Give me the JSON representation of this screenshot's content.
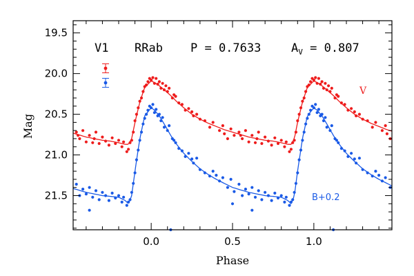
{
  "chart_data": {
    "type": "scatter",
    "xlabel": "Phase",
    "ylabel": "Mag",
    "xlim": [
      -0.48,
      1.48
    ],
    "ylim": [
      21.92,
      19.35
    ],
    "y_inverted": true,
    "x_ticks": [
      0.0,
      0.5,
      1.0
    ],
    "x_tick_labels": [
      "0.0",
      "0.5",
      "1.0"
    ],
    "y_ticks": [
      19.5,
      20.0,
      20.5,
      21.0,
      21.5
    ],
    "y_tick_labels": [
      "19.5",
      "20.0",
      "20.5",
      "21.0",
      "21.5"
    ],
    "x_minor_step": 0.1,
    "y_minor_step": 0.1,
    "grid": false,
    "annotations": {
      "star_id": "V1",
      "type": "RRab",
      "period_label": "P = 0.7633",
      "amp_prefix": "A",
      "amp_sub": "V",
      "amp_value": " = 0.807",
      "v_label": "V",
      "b_label": "B+0.2"
    },
    "series": [
      {
        "name": "V",
        "color": "#ee1c1c",
        "offset": 0.0,
        "model_phase": [
          0.0,
          0.02,
          0.05,
          0.08,
          0.12,
          0.16,
          0.2,
          0.25,
          0.3,
          0.35,
          0.4,
          0.45,
          0.5,
          0.55,
          0.6,
          0.65,
          0.7,
          0.75,
          0.8,
          0.84,
          0.86,
          0.88,
          0.9,
          0.93,
          0.96,
          1.0
        ],
        "model_mag": [
          20.09,
          20.11,
          20.15,
          20.2,
          20.27,
          20.35,
          20.42,
          20.5,
          20.56,
          20.61,
          20.65,
          20.69,
          20.72,
          20.75,
          20.78,
          20.8,
          20.82,
          20.83,
          20.85,
          20.87,
          20.87,
          20.8,
          20.6,
          20.35,
          20.17,
          20.09
        ],
        "points": [
          [
            0.0,
            20.08
          ],
          [
            0.01,
            20.05
          ],
          [
            0.02,
            20.12
          ],
          [
            0.03,
            20.06
          ],
          [
            0.04,
            20.13
          ],
          [
            0.05,
            20.1
          ],
          [
            0.06,
            20.18
          ],
          [
            0.07,
            20.12
          ],
          [
            0.08,
            20.2
          ],
          [
            0.1,
            20.22
          ],
          [
            0.11,
            20.18
          ],
          [
            0.13,
            20.3
          ],
          [
            0.15,
            20.28
          ],
          [
            0.17,
            20.36
          ],
          [
            0.19,
            20.38
          ],
          [
            0.21,
            20.45
          ],
          [
            0.23,
            20.43
          ],
          [
            0.26,
            20.52
          ],
          [
            0.28,
            20.5
          ],
          [
            0.3,
            20.56
          ],
          [
            0.33,
            20.58
          ],
          [
            0.36,
            20.66
          ],
          [
            0.38,
            20.6
          ],
          [
            0.42,
            20.7
          ],
          [
            0.44,
            20.64
          ],
          [
            0.47,
            20.8
          ],
          [
            0.49,
            20.68
          ],
          [
            0.51,
            20.76
          ],
          [
            0.54,
            20.72
          ],
          [
            0.56,
            20.8
          ],
          [
            0.58,
            20.7
          ],
          [
            0.6,
            20.84
          ],
          [
            0.62,
            20.76
          ],
          [
            0.64,
            20.85
          ],
          [
            0.66,
            20.72
          ],
          [
            0.68,
            20.86
          ],
          [
            0.7,
            20.78
          ],
          [
            0.72,
            20.83
          ],
          [
            0.74,
            20.88
          ],
          [
            0.76,
            20.79
          ],
          [
            0.78,
            20.86
          ],
          [
            0.8,
            20.82
          ],
          [
            0.82,
            20.9
          ],
          [
            0.83,
            20.84
          ],
          [
            0.85,
            20.96
          ],
          [
            0.86,
            20.93
          ],
          [
            0.87,
            20.85
          ],
          [
            0.88,
            20.82
          ],
          [
            0.89,
            20.72
          ],
          [
            0.9,
            20.58
          ],
          [
            0.91,
            20.5
          ],
          [
            0.92,
            20.42
          ],
          [
            0.93,
            20.34
          ],
          [
            0.94,
            20.3
          ],
          [
            0.95,
            20.22
          ],
          [
            0.96,
            20.16
          ],
          [
            0.97,
            20.14
          ],
          [
            0.98,
            20.1
          ],
          [
            0.99,
            20.06
          ],
          [
            0.45,
            20.74
          ],
          [
            0.25,
            20.47
          ],
          [
            0.14,
            20.26
          ],
          [
            0.09,
            20.15
          ],
          [
            0.55,
            20.76
          ],
          [
            0.65,
            20.8
          ]
        ]
      },
      {
        "name": "B+0.2",
        "color": "#1a5ae6",
        "offset": 0.0,
        "model_phase": [
          0.0,
          0.02,
          0.05,
          0.08,
          0.12,
          0.16,
          0.2,
          0.25,
          0.3,
          0.35,
          0.4,
          0.45,
          0.5,
          0.55,
          0.6,
          0.65,
          0.7,
          0.75,
          0.8,
          0.84,
          0.86,
          0.88,
          0.9,
          0.93,
          0.96,
          1.0
        ],
        "model_mag": [
          20.42,
          20.45,
          20.52,
          20.62,
          20.76,
          20.88,
          20.98,
          21.08,
          21.17,
          21.24,
          21.3,
          21.35,
          21.4,
          21.43,
          21.46,
          21.48,
          21.5,
          21.51,
          21.52,
          21.56,
          21.6,
          21.5,
          21.2,
          20.8,
          20.52,
          20.42
        ],
        "points": [
          [
            0.0,
            20.42
          ],
          [
            0.01,
            20.38
          ],
          [
            0.02,
            20.48
          ],
          [
            0.03,
            20.44
          ],
          [
            0.04,
            20.52
          ],
          [
            0.05,
            20.5
          ],
          [
            0.06,
            20.58
          ],
          [
            0.07,
            20.54
          ],
          [
            0.08,
            20.66
          ],
          [
            0.1,
            20.7
          ],
          [
            0.11,
            20.64
          ],
          [
            0.13,
            20.8
          ],
          [
            0.15,
            20.85
          ],
          [
            0.17,
            20.92
          ],
          [
            0.19,
            20.95
          ],
          [
            0.21,
            21.02
          ],
          [
            0.23,
            20.98
          ],
          [
            0.26,
            21.1
          ],
          [
            0.28,
            21.04
          ],
          [
            0.3,
            21.18
          ],
          [
            0.33,
            21.22
          ],
          [
            0.36,
            21.26
          ],
          [
            0.38,
            21.2
          ],
          [
            0.42,
            21.32
          ],
          [
            0.44,
            21.28
          ],
          [
            0.47,
            21.4
          ],
          [
            0.49,
            21.3
          ],
          [
            0.51,
            21.45
          ],
          [
            0.54,
            21.36
          ],
          [
            0.56,
            21.5
          ],
          [
            0.58,
            21.42
          ],
          [
            0.6,
            21.48
          ],
          [
            0.62,
            21.4
          ],
          [
            0.64,
            21.52
          ],
          [
            0.66,
            21.44
          ],
          [
            0.68,
            21.55
          ],
          [
            0.7,
            21.46
          ],
          [
            0.72,
            21.5
          ],
          [
            0.74,
            21.56
          ],
          [
            0.76,
            21.47
          ],
          [
            0.78,
            21.53
          ],
          [
            0.8,
            21.5
          ],
          [
            0.82,
            21.58
          ],
          [
            0.83,
            21.52
          ],
          [
            0.85,
            21.62
          ],
          [
            0.86,
            21.58
          ],
          [
            0.87,
            21.55
          ],
          [
            0.88,
            21.46
          ],
          [
            0.89,
            21.35
          ],
          [
            0.9,
            21.22
          ],
          [
            0.91,
            21.06
          ],
          [
            0.92,
            20.94
          ],
          [
            0.93,
            20.82
          ],
          [
            0.94,
            20.72
          ],
          [
            0.95,
            20.62
          ],
          [
            0.96,
            20.55
          ],
          [
            0.97,
            20.5
          ],
          [
            0.98,
            20.45
          ],
          [
            0.99,
            20.4
          ],
          [
            0.5,
            21.6
          ],
          [
            0.4,
            21.25
          ],
          [
            0.25,
            21.05
          ],
          [
            0.14,
            20.82
          ],
          [
            0.12,
            21.92
          ],
          [
            0.62,
            21.68
          ]
        ]
      }
    ],
    "error_bars": [
      {
        "series": "V",
        "mag_error": 0.03
      },
      {
        "series": "B+0.2",
        "mag_error": 0.03
      }
    ]
  }
}
